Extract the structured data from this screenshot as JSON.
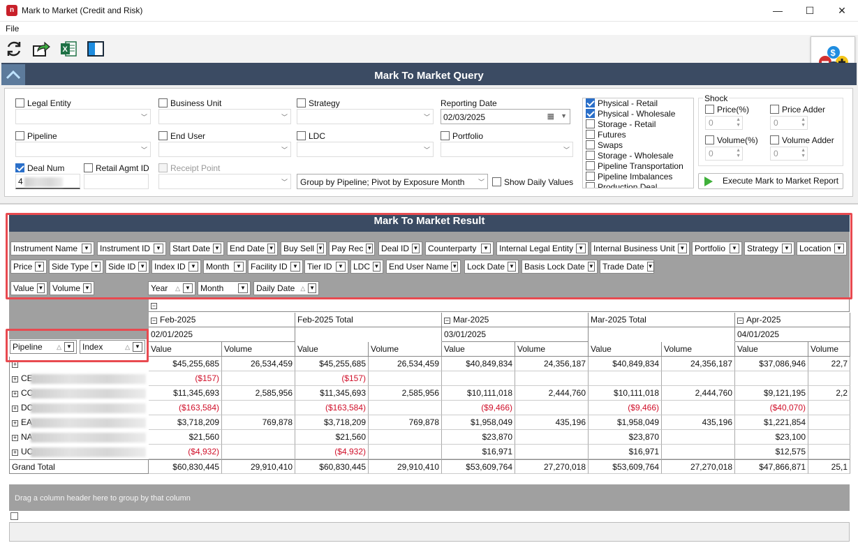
{
  "window": {
    "title": "Mark to Market (Credit and Risk)",
    "min_glyph": "—",
    "max_glyph": "☐",
    "close_glyph": "✕"
  },
  "menu": {
    "file": "File"
  },
  "toolbar": {
    "icons": [
      "refresh-icon",
      "export-icon",
      "excel-icon",
      "layout-icon"
    ]
  },
  "query": {
    "title": "Mark To Market Query",
    "legal_entity": "Legal Entity",
    "business_unit": "Business Unit",
    "strategy": "Strategy",
    "reporting_date_label": "Reporting Date",
    "reporting_date_value": "02/03/2025",
    "pipeline": "Pipeline",
    "end_user": "End User",
    "ldc": "LDC",
    "portfolio": "Portfolio",
    "deal_num": "Deal Num",
    "deal_num_value": "4",
    "retail_agmt_id": "Retail Agmt ID",
    "receipt_point": "Receipt Point",
    "group_by": "Group by Pipeline; Pivot by Exposure Month",
    "show_daily": "Show Daily Values",
    "types": [
      {
        "label": "Physical - Retail",
        "checked": true
      },
      {
        "label": "Physical - Wholesale",
        "checked": true
      },
      {
        "label": "Storage - Retail",
        "checked": false
      },
      {
        "label": "Futures",
        "checked": false
      },
      {
        "label": "Swaps",
        "checked": false
      },
      {
        "label": "Storage - Wholesale",
        "checked": false
      },
      {
        "label": "Pipeline Transportation",
        "checked": false
      },
      {
        "label": "Pipeline Imbalances",
        "checked": false
      },
      {
        "label": "Production Deal",
        "checked": false
      }
    ],
    "shock": {
      "title": "Shock",
      "price_pct": "Price(%)",
      "price_adder": "Price Adder",
      "volume_pct": "Volume(%)",
      "volume_adder": "Volume Adder",
      "zero": "0"
    },
    "execute": "Execute Mark to Market Report"
  },
  "result": {
    "title": "Mark To Market Result",
    "filter_fields_row1": [
      "Instrument Name",
      "Instrument ID",
      "Start Date",
      "End Date",
      "Buy Sell",
      "Pay Rec",
      "Deal ID",
      "Counterparty",
      "Internal Legal Entity",
      "Internal Business Unit",
      "Portfolio",
      "Strategy",
      "Location"
    ],
    "filter_fields_row2": [
      "Price",
      "Side Type",
      "Side ID",
      "Index ID",
      "Month",
      "Facility ID",
      "Tier ID",
      "LDC",
      "End User Name",
      "Lock Date",
      "Basis Lock Date",
      "Trade Date"
    ],
    "data_fields": [
      "Value",
      "Volume"
    ],
    "column_fields": [
      "Year",
      "Month",
      "Daily Date"
    ],
    "row_fields": [
      "Pipeline",
      "Index"
    ],
    "columns": [
      {
        "month": "Feb-2025",
        "date": "02/01/2025"
      },
      {
        "month": "Feb-2025 Total",
        "date": ""
      },
      {
        "month": "Mar-2025",
        "date": "03/01/2025"
      },
      {
        "month": "Mar-2025 Total",
        "date": ""
      },
      {
        "month": "Apr-2025",
        "date": "04/01/2025"
      }
    ],
    "value_label": "Value",
    "volume_label": "Volume",
    "rows": [
      {
        "label": "",
        "cells": [
          "$45,255,685",
          "26,534,459",
          "$45,255,685",
          "26,534,459",
          "$40,849,834",
          "24,356,187",
          "$40,849,834",
          "24,356,187",
          "$37,086,946",
          "22,7"
        ]
      },
      {
        "label": "CE",
        "cells": [
          "($157)",
          "",
          "($157)",
          "",
          "",
          "",
          "",
          "",
          "",
          ""
        ]
      },
      {
        "label": "CC",
        "cells": [
          "$11,345,693",
          "2,585,956",
          "$11,345,693",
          "2,585,956",
          "$10,111,018",
          "2,444,760",
          "$10,111,018",
          "2,444,760",
          "$9,121,195",
          "2,2"
        ]
      },
      {
        "label": "DC",
        "cells": [
          "($163,584)",
          "",
          "($163,584)",
          "",
          "($9,466)",
          "",
          "($9,466)",
          "",
          "($40,070)",
          ""
        ]
      },
      {
        "label": "EA",
        "cells": [
          "$3,718,209",
          "769,878",
          "$3,718,209",
          "769,878",
          "$1,958,049",
          "435,196",
          "$1,958,049",
          "435,196",
          "$1,221,854",
          ""
        ]
      },
      {
        "label": "NA",
        "cells": [
          "$21,560",
          "",
          "$21,560",
          "",
          "$23,870",
          "",
          "$23,870",
          "",
          "$23,100",
          ""
        ]
      },
      {
        "label": "UC",
        "cells": [
          "($4,932)",
          "",
          "($4,932)",
          "",
          "$16,971",
          "",
          "$16,971",
          "",
          "$12,575",
          ""
        ]
      }
    ],
    "grand_total": {
      "label": "Grand Total",
      "cells": [
        "$60,830,445",
        "29,910,410",
        "$60,830,445",
        "29,910,410",
        "$53,609,764",
        "27,270,018",
        "$53,609,764",
        "27,270,018",
        "$47,866,871",
        "25,1"
      ]
    },
    "group_hint": "Drag a column header here to group by that column"
  }
}
